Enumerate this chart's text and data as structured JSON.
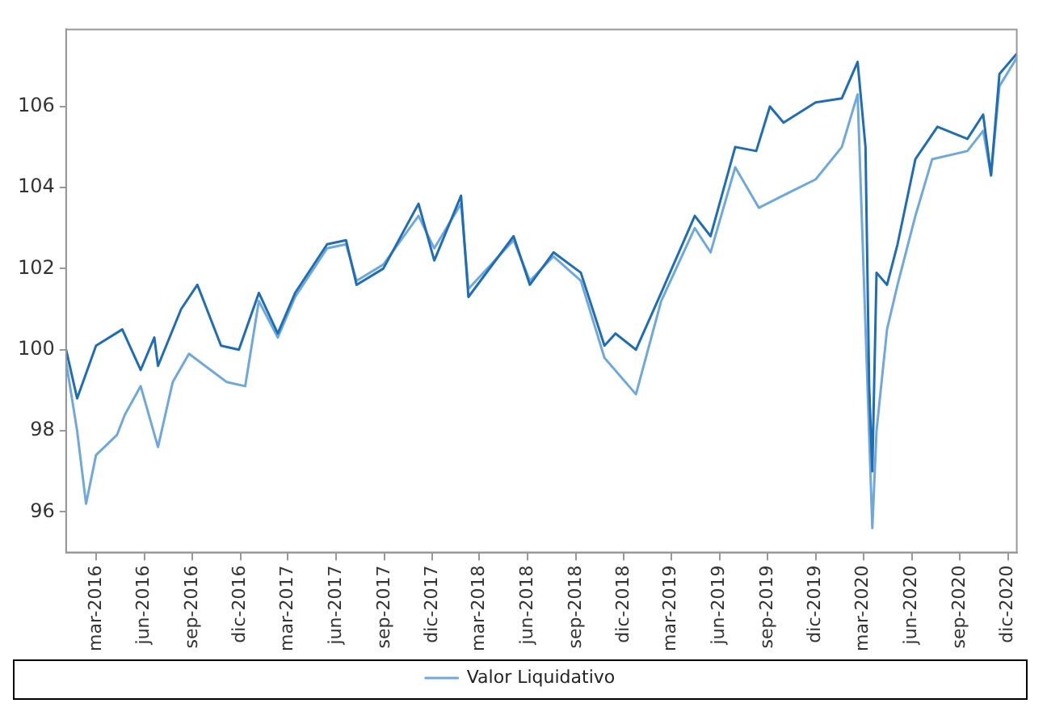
{
  "chart_data": {
    "type": "line",
    "xlim": [
      "2016-01-04",
      "2020-12-18"
    ],
    "xticks": [
      {
        "value": "2016-03-01",
        "label": "mar-2016"
      },
      {
        "value": "2016-06-01",
        "label": "jun-2016"
      },
      {
        "value": "2016-09-01",
        "label": "sep-2016"
      },
      {
        "value": "2016-12-01",
        "label": "dic-2016"
      },
      {
        "value": "2017-03-01",
        "label": "mar-2017"
      },
      {
        "value": "2017-06-01",
        "label": "jun-2017"
      },
      {
        "value": "2017-09-01",
        "label": "sep-2017"
      },
      {
        "value": "2017-12-01",
        "label": "dic-2017"
      },
      {
        "value": "2018-03-01",
        "label": "mar-2018"
      },
      {
        "value": "2018-06-01",
        "label": "jun-2018"
      },
      {
        "value": "2018-09-01",
        "label": "sep-2018"
      },
      {
        "value": "2018-12-01",
        "label": "dic-2018"
      },
      {
        "value": "2019-03-01",
        "label": "mar-2019"
      },
      {
        "value": "2019-06-01",
        "label": "jun-2019"
      },
      {
        "value": "2019-09-01",
        "label": "sep-2019"
      },
      {
        "value": "2019-12-01",
        "label": "dic-2019"
      },
      {
        "value": "2020-03-01",
        "label": "mar-2020"
      },
      {
        "value": "2020-06-01",
        "label": "jun-2020"
      },
      {
        "value": "2020-09-01",
        "label": "sep-2020"
      },
      {
        "value": "2020-12-01",
        "label": "dic-2020"
      }
    ],
    "ylim": [
      95,
      107.9
    ],
    "yticks": [
      96,
      98,
      100,
      102,
      104,
      106
    ],
    "grid": false,
    "legend": "bottom",
    "marker": "none",
    "line_style": "solid",
    "series": [
      {
        "color": "#1f6db5",
        "x": [
          "2016-01-04",
          "2016-01-25",
          "2016-03-01",
          "2016-04-20",
          "2016-05-25",
          "2016-06-20",
          "2016-06-27",
          "2016-08-10",
          "2016-09-10",
          "2016-10-25",
          "2016-11-28",
          "2017-01-05",
          "2017-02-10",
          "2017-03-15",
          "2017-05-15",
          "2017-06-20",
          "2017-07-10",
          "2017-08-30",
          "2017-11-05",
          "2017-12-05",
          "2018-01-25",
          "2018-02-08",
          "2018-05-05",
          "2018-06-05",
          "2018-07-20",
          "2018-09-10",
          "2018-10-25",
          "2018-11-15",
          "2018-12-24",
          "2019-02-10",
          "2019-04-15",
          "2019-05-15",
          "2019-07-01",
          "2019-08-10",
          "2019-09-05",
          "2019-10-01",
          "2019-12-01",
          "2020-01-20",
          "2020-02-19",
          "2020-03-05",
          "2020-03-12",
          "2020-03-18",
          "2020-03-26",
          "2020-04-15",
          "2020-05-05",
          "2020-06-08",
          "2020-07-20",
          "2020-09-15",
          "2020-10-15",
          "2020-10-30",
          "2020-11-15",
          "2020-12-18"
        ],
        "values": [
          100.0,
          98.8,
          100.1,
          100.5,
          99.5,
          100.3,
          99.6,
          101.0,
          101.6,
          100.1,
          100.0,
          101.4,
          100.4,
          101.4,
          102.6,
          102.7,
          101.6,
          102.0,
          103.6,
          102.2,
          103.8,
          101.3,
          102.8,
          101.6,
          102.4,
          101.9,
          100.1,
          100.4,
          100.0,
          101.4,
          103.3,
          102.8,
          105.0,
          104.9,
          106.0,
          105.6,
          106.1,
          106.2,
          107.1,
          105.0,
          99.1,
          97.0,
          101.9,
          101.6,
          102.6,
          104.7,
          105.5,
          105.2,
          105.8,
          104.3,
          106.8,
          107.3
        ]
      },
      {
        "name": "Valor Liquidativo",
        "color": "#6fa8dc",
        "x": [
          "2016-01-04",
          "2016-01-25",
          "2016-02-11",
          "2016-03-01",
          "2016-04-10",
          "2016-04-25",
          "2016-05-25",
          "2016-06-27",
          "2016-07-25",
          "2016-08-25",
          "2016-10-05",
          "2016-11-05",
          "2016-12-10",
          "2017-01-05",
          "2017-02-10",
          "2017-03-15",
          "2017-05-15",
          "2017-06-20",
          "2017-07-10",
          "2017-08-30",
          "2017-11-05",
          "2017-12-05",
          "2018-01-25",
          "2018-02-08",
          "2018-05-05",
          "2018-06-05",
          "2018-07-20",
          "2018-09-10",
          "2018-10-25",
          "2018-12-24",
          "2019-02-10",
          "2019-04-15",
          "2019-05-15",
          "2019-07-01",
          "2019-08-15",
          "2019-10-15",
          "2019-12-01",
          "2020-01-20",
          "2020-02-19",
          "2020-03-18",
          "2020-03-26",
          "2020-04-15",
          "2020-05-05",
          "2020-06-08",
          "2020-07-10",
          "2020-09-15",
          "2020-10-15",
          "2020-10-30",
          "2020-11-15",
          "2020-12-18"
        ],
        "values": [
          99.7,
          98.0,
          96.2,
          97.4,
          97.9,
          98.4,
          99.1,
          97.6,
          99.2,
          99.9,
          99.5,
          99.2,
          99.1,
          101.2,
          100.3,
          101.3,
          102.5,
          102.6,
          101.7,
          102.1,
          103.3,
          102.5,
          103.6,
          101.5,
          102.7,
          101.7,
          102.3,
          101.7,
          99.8,
          98.9,
          101.2,
          103.0,
          102.4,
          104.5,
          103.5,
          103.9,
          104.2,
          105.0,
          106.3,
          95.6,
          98.0,
          100.5,
          101.6,
          103.3,
          104.7,
          104.9,
          105.4,
          104.3,
          106.5,
          107.2
        ]
      }
    ]
  }
}
